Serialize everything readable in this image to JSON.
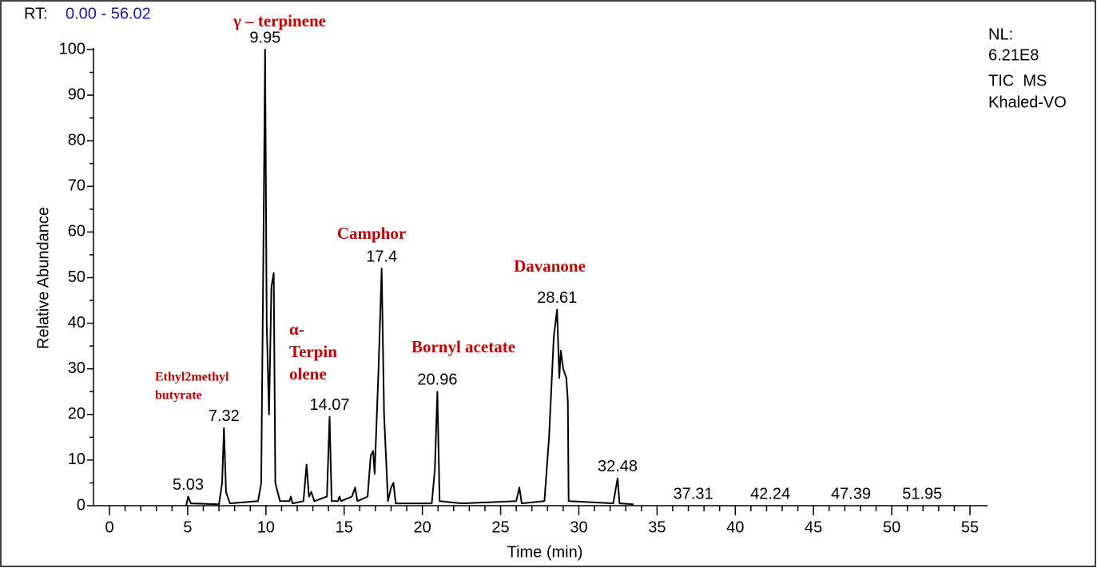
{
  "chart_data": {
    "type": "line",
    "rt_label": "RT:",
    "rt_range": "0.00 - 56.02",
    "info": [
      "NL:",
      "6.21E8",
      "TIC  MS",
      "Khaled-VO"
    ],
    "xlabel": "Time (min)",
    "ylabel": "Relative Abundance",
    "color": "#000000",
    "xlim": [
      0,
      55
    ],
    "ylim": [
      0,
      100
    ],
    "xticks": [
      0,
      5,
      10,
      15,
      20,
      25,
      30,
      35,
      40,
      45,
      50,
      55
    ],
    "yticks": [
      0,
      10,
      20,
      30,
      40,
      50,
      60,
      70,
      80,
      90,
      100
    ],
    "x": [
      4.9,
      5.03,
      5.2,
      7.0,
      7.2,
      7.32,
      7.45,
      7.7,
      9.5,
      9.7,
      9.85,
      9.95,
      10.05,
      10.2,
      10.35,
      10.5,
      10.6,
      10.9,
      11.5,
      11.6,
      11.7,
      12.4,
      12.6,
      12.75,
      12.9,
      13.1,
      13.9,
      14.07,
      14.2,
      14.6,
      14.7,
      14.8,
      15.5,
      15.7,
      15.85,
      16.5,
      16.7,
      16.85,
      16.95,
      17.2,
      17.4,
      17.55,
      17.8,
      18.0,
      18.15,
      18.3,
      20.6,
      20.8,
      20.96,
      21.1,
      22.5,
      26.0,
      26.2,
      26.35,
      27.8,
      28.1,
      28.4,
      28.61,
      28.75,
      28.85,
      29.0,
      29.2,
      29.3,
      29.35,
      32.2,
      32.48,
      32.6,
      33.5
    ],
    "values": [
      0,
      2,
      0.5,
      0.3,
      5,
      17,
      3,
      0.5,
      1,
      5,
      60,
      100,
      40,
      20,
      48,
      51,
      5,
      1,
      1,
      2,
      0.5,
      1,
      9,
      2,
      3,
      1,
      2,
      19.5,
      1,
      1,
      2,
      1,
      2,
      4,
      1,
      2,
      11,
      12,
      7,
      30,
      52,
      20,
      1,
      4,
      5,
      0.5,
      0.5,
      8,
      25,
      1,
      0.5,
      1,
      4,
      0.5,
      1,
      15,
      37,
      43,
      28,
      34,
      30,
      28,
      23,
      1,
      0.5,
      6,
      0.5,
      0.3
    ],
    "peak_labels": [
      {
        "x": 5.03,
        "y": 2
      },
      {
        "x": 7.32,
        "y": 17
      },
      {
        "x": 9.95,
        "y": 100
      },
      {
        "x": 14.07,
        "y": 19.5
      },
      {
        "x": 17.4,
        "y": 52
      },
      {
        "x": 20.96,
        "y": 25
      },
      {
        "x": 28.61,
        "y": 43
      },
      {
        "x": 32.48,
        "y": 6
      },
      {
        "x": 37.31,
        "y": 0
      },
      {
        "x": 42.24,
        "y": 0
      },
      {
        "x": 47.39,
        "y": 0
      },
      {
        "x": 51.95,
        "y": 0
      }
    ],
    "annotations": [
      {
        "lines": [
          "γ – terpinene"
        ]
      },
      {
        "lines": [
          "Camphor"
        ]
      },
      {
        "lines": [
          "Davanone"
        ]
      },
      {
        "lines": [
          "Bornyl acetate"
        ]
      },
      {
        "lines": [
          "α-",
          "Terpin",
          "olene"
        ]
      },
      {
        "lines": [
          "Ethyl2methyl",
          "butyrate"
        ]
      }
    ]
  }
}
